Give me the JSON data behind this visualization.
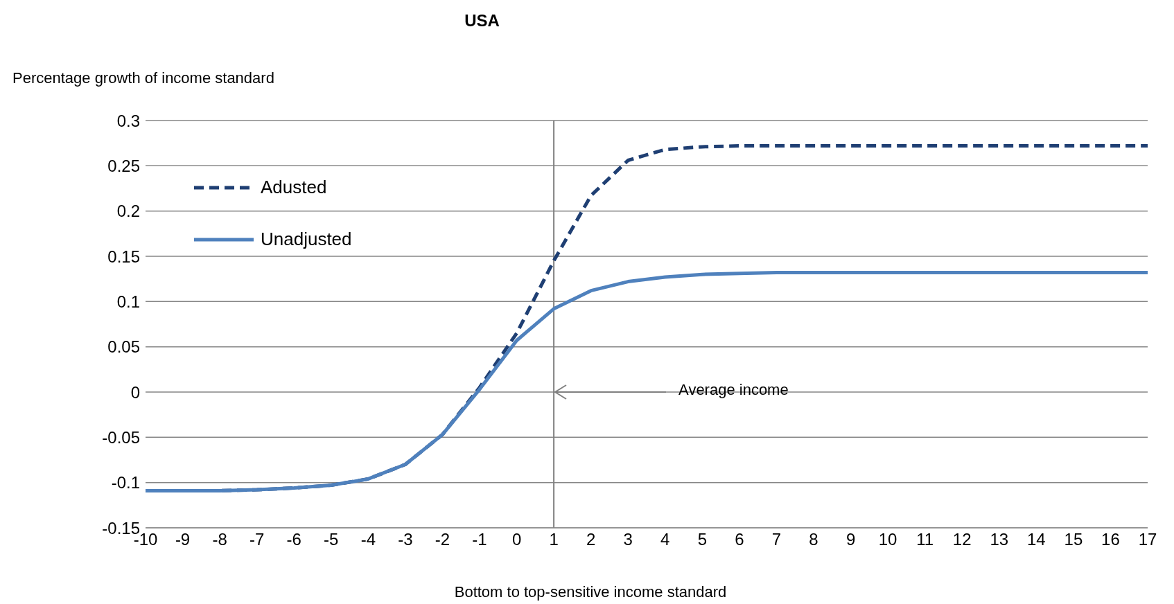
{
  "chart_data": {
    "type": "line",
    "title": "USA",
    "ylabel": "Percentage growth of income standard",
    "xlabel": "Bottom to top-sensitive income standard",
    "x": [
      -10,
      -9,
      -8,
      -7,
      -6,
      -5,
      -4,
      -3,
      -2,
      -1,
      0,
      1,
      2,
      3,
      4,
      5,
      6,
      7,
      8,
      9,
      10,
      11,
      12,
      13,
      14,
      15,
      16,
      17
    ],
    "series": [
      {
        "name": "Adusted",
        "color": "#1f3f73",
        "line_style": "dashed",
        "values": [
          -0.109,
          -0.109,
          -0.109,
          -0.108,
          -0.106,
          -0.103,
          -0.096,
          -0.08,
          -0.047,
          0.005,
          0.065,
          0.145,
          0.217,
          0.256,
          0.268,
          0.271,
          0.272,
          0.272,
          0.272,
          0.272,
          0.272,
          0.272,
          0.272,
          0.272,
          0.272,
          0.272,
          0.272,
          0.272
        ]
      },
      {
        "name": "Unadjusted",
        "color": "#4f81bd",
        "line_style": "solid",
        "values": [
          -0.109,
          -0.109,
          -0.109,
          -0.108,
          -0.106,
          -0.103,
          -0.096,
          -0.08,
          -0.047,
          0.003,
          0.057,
          0.092,
          0.112,
          0.122,
          0.127,
          0.13,
          0.131,
          0.132,
          0.132,
          0.132,
          0.132,
          0.132,
          0.132,
          0.132,
          0.132,
          0.132,
          0.132,
          0.132
        ]
      }
    ],
    "xlim": [
      -10,
      17
    ],
    "xticks": [
      -10,
      -9,
      -8,
      -7,
      -6,
      -5,
      -4,
      -3,
      -2,
      -1,
      0,
      1,
      2,
      3,
      4,
      5,
      6,
      7,
      8,
      9,
      10,
      11,
      12,
      13,
      14,
      15,
      16,
      17
    ],
    "ylim": [
      -0.15,
      0.3
    ],
    "yticks": [
      -0.15,
      -0.1,
      -0.05,
      0,
      0.05,
      0.1,
      0.15,
      0.2,
      0.25,
      0.3
    ],
    "grid": "y",
    "legend": "top left",
    "ref_lines": [
      {
        "axis": "x",
        "value": 1,
        "color": "#808080"
      }
    ],
    "annotations": [
      {
        "text": "Average income",
        "x": 1,
        "y": 0
      }
    ]
  }
}
